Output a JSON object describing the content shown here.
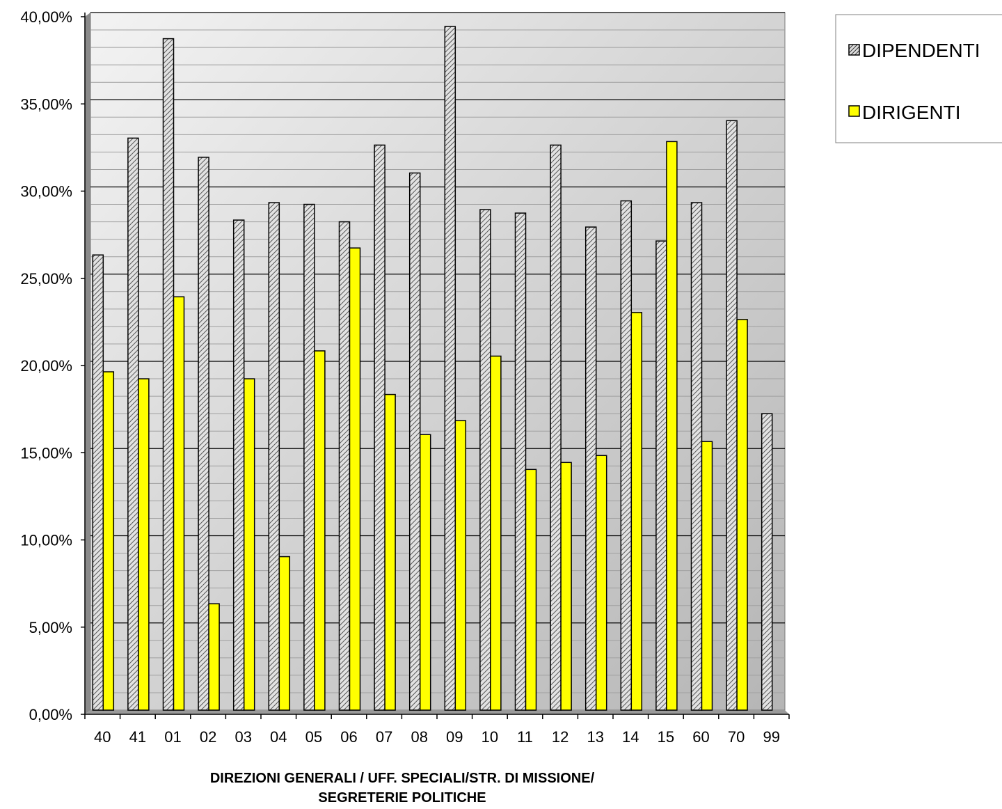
{
  "chart_data": {
    "type": "bar",
    "categories": [
      "40",
      "41",
      "01",
      "02",
      "03",
      "04",
      "05",
      "06",
      "07",
      "08",
      "09",
      "10",
      "11",
      "12",
      "13",
      "14",
      "15",
      "60",
      "70",
      "99"
    ],
    "series": [
      {
        "name": "DIPENDENTI",
        "color": "#a6a6a6",
        "pattern": "diagonal-hatch",
        "values": [
          26.1,
          32.8,
          38.5,
          31.7,
          28.1,
          29.1,
          29.0,
          28.0,
          32.4,
          30.8,
          39.2,
          28.7,
          28.5,
          32.4,
          27.7,
          29.2,
          26.9,
          29.1,
          33.8,
          17.0
        ]
      },
      {
        "name": "DIRIGENTI",
        "color": "#ffff00",
        "values": [
          19.4,
          19.0,
          23.7,
          6.1,
          19.0,
          8.8,
          20.6,
          26.5,
          18.1,
          15.8,
          16.6,
          20.3,
          13.8,
          14.2,
          14.6,
          22.8,
          32.6,
          15.4,
          22.4,
          null
        ]
      }
    ],
    "ylim": [
      0,
      40
    ],
    "yticks": [
      "0,00%",
      "5,00%",
      "10,00%",
      "15,00%",
      "20,00%",
      "25,00%",
      "30,00%",
      "35,00%",
      "40,00%"
    ],
    "ytick_values": [
      0,
      5,
      10,
      15,
      20,
      25,
      30,
      35,
      40
    ],
    "xlabel": [
      "DIREZIONI GENERALI / UFF. SPECIALI/STR. DI MISSIONE/",
      "SEGRETERIE POLITICHE"
    ],
    "grid": true,
    "legend_position": "top-right"
  }
}
